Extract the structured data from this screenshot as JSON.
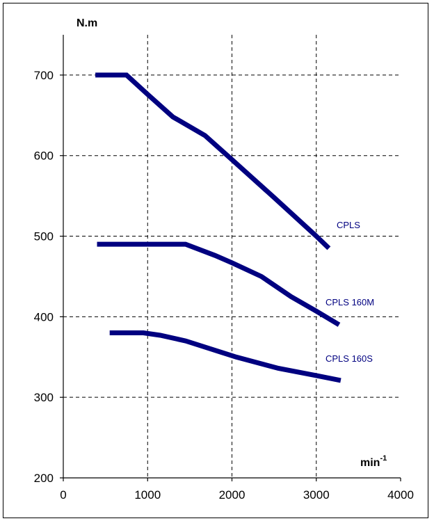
{
  "chart_data": {
    "type": "line",
    "y_title": "N.m",
    "x_title_base": "min",
    "x_title_exp": "-1",
    "xlim": [
      0,
      4000
    ],
    "ylim": [
      200,
      750
    ],
    "x_ticks": [
      0,
      1000,
      2000,
      3000,
      4000
    ],
    "y_ticks": [
      200,
      300,
      400,
      500,
      600,
      700
    ],
    "x_tick_labels": [
      "0",
      "1000",
      "2000",
      "3000",
      "4000"
    ],
    "y_tick_labels": [
      "200",
      "300",
      "400",
      "500",
      "600",
      "700"
    ],
    "x_grid": [
      1000,
      2000,
      3000
    ],
    "y_grid": [
      300,
      400,
      500,
      600,
      700
    ],
    "grid": true,
    "series": [
      {
        "name": "CPLS",
        "color": "#000080",
        "points": [
          [
            380,
            700
          ],
          [
            750,
            700
          ],
          [
            1000,
            676
          ],
          [
            1300,
            648
          ],
          [
            1680,
            625
          ],
          [
            2000,
            595
          ],
          [
            2500,
            548
          ],
          [
            3000,
            500
          ],
          [
            3150,
            485
          ]
        ]
      },
      {
        "name": "CPLS 160M",
        "color": "#000080",
        "points": [
          [
            400,
            490
          ],
          [
            1450,
            490
          ],
          [
            1800,
            476
          ],
          [
            2000,
            467
          ],
          [
            2350,
            450
          ],
          [
            2700,
            425
          ],
          [
            3000,
            407
          ],
          [
            3270,
            390
          ]
        ]
      },
      {
        "name": "CPLS 160S",
        "color": "#000080",
        "points": [
          [
            550,
            380
          ],
          [
            950,
            380
          ],
          [
            1150,
            377
          ],
          [
            1450,
            370
          ],
          [
            1750,
            360
          ],
          [
            2050,
            350
          ],
          [
            2550,
            336
          ],
          [
            3000,
            327
          ],
          [
            3290,
            321
          ]
        ]
      }
    ]
  }
}
